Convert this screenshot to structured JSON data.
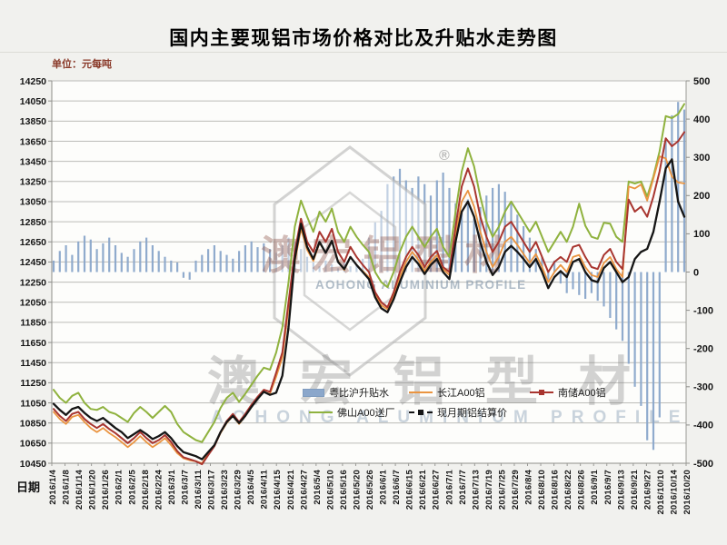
{
  "page": {
    "title": "国内主要现铝市场价格对比及升贴水走势图",
    "unit_label": "单位：元每吨",
    "date_label": "日期"
  },
  "watermark": {
    "brand_cn": "澳宏铝型材",
    "brand_en": "AOHONG ALUMINIUM PROFILE",
    "registered_mark": "®"
  },
  "chart_data": {
    "type": "line",
    "title": "国内主要现铝市场价格对比及升贴水走势图",
    "left_axis": {
      "label": "单位：元每吨",
      "max": 14250,
      "min": 10450,
      "step": 200,
      "tick_labels": [
        "14250",
        "14050",
        "13850",
        "13650",
        "13450",
        "13250",
        "13050",
        "12850",
        "12650",
        "12450",
        "12250",
        "12050",
        "11850",
        "11650",
        "11450",
        "11250",
        "11050",
        "10850",
        "10650",
        "10450"
      ]
    },
    "right_axis": {
      "max": 500,
      "min": -500,
      "step": 100,
      "tick_labels": [
        "500",
        "400",
        "300",
        "200",
        "100",
        "0",
        "-100",
        "-200",
        "-300",
        "-400",
        "-500"
      ]
    },
    "x_axis_title": "日期",
    "x_tick_labels": [
      "2016/1/4",
      "2016/1/8",
      "2016/1/14",
      "2016/1/20",
      "2016/1/26",
      "2016/2/1",
      "2016/2/5",
      "2016/2/18",
      "2016/2/24",
      "2016/3/1",
      "2016/3/7",
      "2016/3/11",
      "2016/3/17",
      "2016/3/23",
      "2016/3/29",
      "2016/4/5",
      "2016/4/11",
      "2016/4/15",
      "2016/4/21",
      "2016/4/27",
      "2016/5/4",
      "2016/5/10",
      "2016/5/16",
      "2016/5/20",
      "2016/5/26",
      "2016/6/1",
      "2016/6/7",
      "2016/6/15",
      "2016/6/21",
      "2016/6/27",
      "2016/7/1",
      "2016/7/7",
      "2016/7/13",
      "2016/7/19",
      "2016/7/25",
      "2016/7/29",
      "2016/8/4",
      "2016/8/10",
      "2016/8/16",
      "2016/8/22",
      "2016/8/26",
      "2016/9/1",
      "2016/9/7",
      "2016/9/13",
      "2016/9/21",
      "2016/9/27",
      "2016/10/10",
      "2016/10/14",
      "2016/10/20"
    ],
    "grid": true,
    "legend_position": "inside-bottom-center",
    "series": [
      {
        "id": "yue-hu-premium",
        "name": "粤比沪升贴水",
        "type": "bar",
        "axis": "right",
        "color": "#8ba7cb",
        "swatch": "bar",
        "values": [
          30,
          55,
          70,
          45,
          80,
          95,
          85,
          60,
          75,
          90,
          70,
          50,
          40,
          60,
          80,
          90,
          70,
          55,
          40,
          30,
          25,
          -15,
          -20,
          30,
          45,
          60,
          70,
          55,
          45,
          35,
          55,
          70,
          80,
          65,
          75,
          60,
          50,
          70,
          90,
          80,
          60,
          40,
          25,
          15,
          30,
          20,
          10,
          25,
          15,
          20,
          35,
          90,
          130,
          160,
          230,
          250,
          270,
          240,
          220,
          250,
          230,
          200,
          240,
          260,
          220,
          180,
          160,
          190,
          140,
          170,
          200,
          220,
          230,
          210,
          180,
          150,
          120,
          90,
          60,
          40,
          -20,
          30,
          -30,
          -55,
          -45,
          -60,
          -70,
          -55,
          -75,
          -90,
          -120,
          -150,
          -180,
          -240,
          -300,
          -350,
          -440,
          -465,
          -380,
          350,
          410,
          445,
          425
        ]
      },
      {
        "id": "changjiang-a00",
        "name": "长江A00铝",
        "type": "line",
        "axis": "left",
        "color": "#ea9440",
        "swatch": "line",
        "values": [
          10960,
          10890,
          10840,
          10910,
          10930,
          10860,
          10800,
          10760,
          10800,
          10750,
          10710,
          10660,
          10610,
          10660,
          10720,
          10660,
          10610,
          10650,
          10700,
          10630,
          10550,
          10500,
          10480,
          10470,
          10450,
          10540,
          10620,
          10750,
          10850,
          10920,
          10840,
          10920,
          11010,
          11090,
          11160,
          11140,
          11310,
          11500,
          12000,
          12450,
          12780,
          12570,
          12460,
          12640,
          12540,
          12660,
          12460,
          12370,
          12500,
          12420,
          12360,
          12300,
          12120,
          12020,
          11980,
          12120,
          12300,
          12450,
          12550,
          12470,
          12360,
          12450,
          12520,
          12380,
          12320,
          12720,
          13050,
          13160,
          13000,
          12750,
          12550,
          12400,
          12500,
          12650,
          12700,
          12620,
          12530,
          12440,
          12530,
          12400,
          12250,
          12350,
          12420,
          12350,
          12500,
          12520,
          12400,
          12320,
          12300,
          12440,
          12500,
          12380,
          12300,
          13200,
          13180,
          13220,
          13060,
          13280,
          13500,
          13480,
          13300,
          13240,
          13230
        ]
      },
      {
        "id": "nanchu-a00",
        "name": "南储A00铝",
        "type": "line",
        "axis": "left",
        "color": "#a8352f",
        "swatch": "line-marker",
        "values": [
          10990,
          10920,
          10870,
          10940,
          10960,
          10890,
          10840,
          10800,
          10840,
          10790,
          10750,
          10700,
          10650,
          10700,
          10760,
          10700,
          10650,
          10680,
          10730,
          10660,
          10570,
          10510,
          10490,
          10470,
          10440,
          10530,
          10620,
          10760,
          10870,
          10940,
          10860,
          10940,
          11030,
          11110,
          11180,
          11160,
          11350,
          11550,
          12050,
          12550,
          12880,
          12650,
          12550,
          12750,
          12650,
          12780,
          12550,
          12450,
          12600,
          12500,
          12420,
          12350,
          12150,
          12050,
          12000,
          12150,
          12350,
          12500,
          12600,
          12520,
          12400,
          12500,
          12560,
          12400,
          12350,
          12800,
          13200,
          13380,
          13200,
          12900,
          12700,
          12550,
          12650,
          12800,
          12850,
          12750,
          12650,
          12550,
          12650,
          12500,
          12350,
          12450,
          12500,
          12450,
          12600,
          12620,
          12500,
          12400,
          12380,
          12520,
          12580,
          12450,
          12380,
          13070,
          12950,
          13000,
          12900,
          13100,
          13350,
          13680,
          13600,
          13650,
          13740
        ]
      },
      {
        "id": "foshan-a00",
        "name": "佛山A00送厂",
        "type": "line",
        "axis": "left",
        "color": "#8fb23e",
        "swatch": "line",
        "values": [
          11180,
          11100,
          11050,
          11120,
          11150,
          11050,
          10990,
          10980,
          11010,
          10960,
          10940,
          10900,
          10860,
          10950,
          11010,
          10960,
          10900,
          10960,
          11020,
          10960,
          10840,
          10760,
          10720,
          10680,
          10660,
          10760,
          10860,
          11000,
          11100,
          11150,
          11060,
          11140,
          11230,
          11320,
          11400,
          11380,
          11550,
          11800,
          12250,
          12800,
          13060,
          12900,
          12750,
          12950,
          12850,
          12980,
          12750,
          12650,
          12800,
          12700,
          12620,
          12550,
          12350,
          12250,
          12200,
          12350,
          12550,
          12700,
          12800,
          12700,
          12600,
          12700,
          12780,
          12600,
          12500,
          12950,
          13350,
          13580,
          13400,
          13100,
          12850,
          12700,
          12800,
          12950,
          13050,
          12950,
          12850,
          12750,
          12850,
          12700,
          12550,
          12650,
          12750,
          12650,
          12800,
          13030,
          12810,
          12700,
          12680,
          12840,
          12830,
          12700,
          12650,
          13250,
          13230,
          13250,
          13100,
          13300,
          13550,
          13900,
          13880,
          13920,
          14020
        ]
      },
      {
        "id": "settlement-price",
        "name": "现月期铝结算价",
        "type": "line",
        "axis": "left",
        "color": "#151515",
        "swatch": "dash-marker",
        "values": [
          11040,
          10980,
          10930,
          10990,
          11010,
          10950,
          10900,
          10870,
          10900,
          10850,
          10800,
          10760,
          10700,
          10740,
          10780,
          10740,
          10690,
          10720,
          10760,
          10700,
          10620,
          10560,
          10540,
          10520,
          10490,
          10560,
          10630,
          10760,
          10860,
          10920,
          10850,
          10920,
          11010,
          11090,
          11160,
          11130,
          11150,
          11320,
          11800,
          12480,
          12830,
          12600,
          12480,
          12650,
          12540,
          12660,
          12450,
          12380,
          12500,
          12420,
          12350,
          12280,
          12100,
          11990,
          11950,
          12080,
          12250,
          12400,
          12500,
          12430,
          12330,
          12420,
          12480,
          12350,
          12280,
          12650,
          12950,
          13050,
          12900,
          12650,
          12450,
          12320,
          12400,
          12550,
          12610,
          12550,
          12480,
          12400,
          12480,
          12350,
          12190,
          12300,
          12360,
          12300,
          12450,
          12480,
          12350,
          12270,
          12250,
          12390,
          12450,
          12350,
          12250,
          12300,
          12480,
          12550,
          12580,
          12750,
          13050,
          13380,
          13470,
          13050,
          12900
        ]
      }
    ]
  },
  "legend": {
    "items": [
      {
        "label": "粤比沪升贴水",
        "color": "#8ba7cb",
        "swatch": "bar"
      },
      {
        "label": "长江A00铝",
        "color": "#ea9440",
        "swatch": "line"
      },
      {
        "label": "南储A00铝",
        "color": "#a8352f",
        "swatch": "line-marker"
      },
      {
        "label": "佛山A00送厂",
        "color": "#8fb23e",
        "swatch": "line"
      },
      {
        "label": "现月期铝结算价",
        "color": "#151515",
        "swatch": "dash-marker"
      }
    ]
  }
}
